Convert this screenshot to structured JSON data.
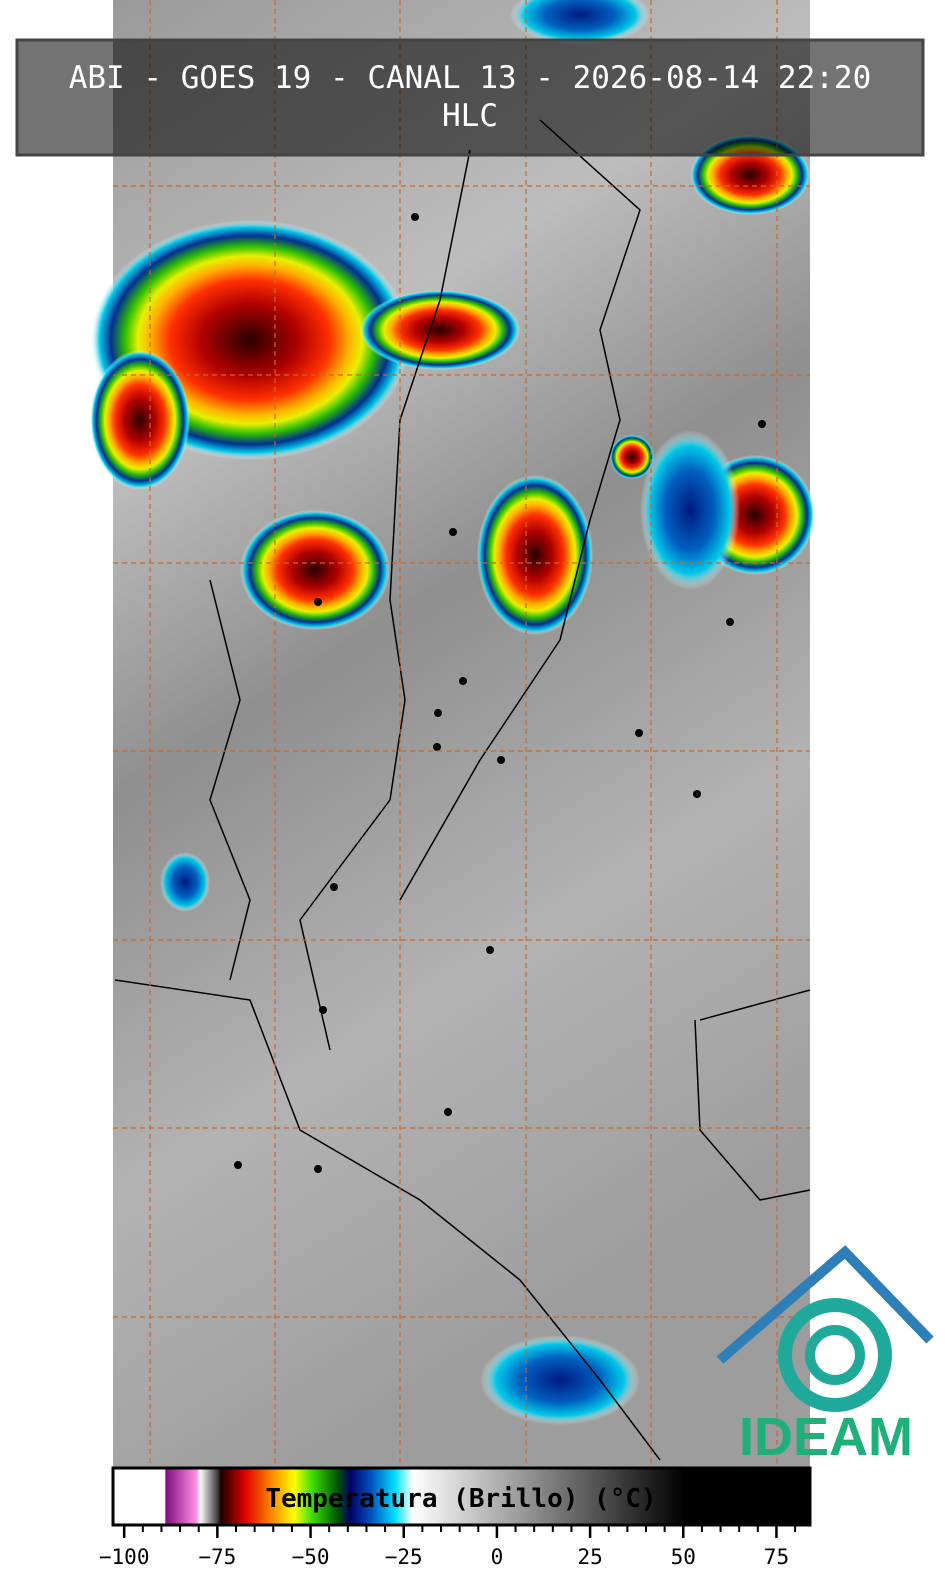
{
  "header": {
    "title": "ABI - GOES 19 - CANAL 13 - 2026-08-14 22:20",
    "subtitle": "HLC"
  },
  "colorbar": {
    "label": "Temperatura (Brillo) (°C)",
    "lim": [
      -103,
      84
    ],
    "ticks": [
      {
        "value": -100,
        "label": "−100"
      },
      {
        "value": -75,
        "label": "−75"
      },
      {
        "value": -50,
        "label": "−50"
      },
      {
        "value": -25,
        "label": "−25"
      },
      0,
      25,
      50,
      75
    ],
    "minor_ticks": [
      -100,
      -95,
      -90,
      -85,
      -80,
      -75,
      -70,
      -65,
      -60,
      -55,
      -50,
      -45,
      -40,
      -35,
      -30,
      -25,
      -20,
      -15,
      -10,
      -5,
      0,
      5,
      10,
      15,
      20,
      25,
      30,
      35,
      40,
      45,
      50,
      55,
      60,
      65,
      70,
      75,
      80
    ]
  },
  "logo": {
    "text": "IDEAM"
  }
}
